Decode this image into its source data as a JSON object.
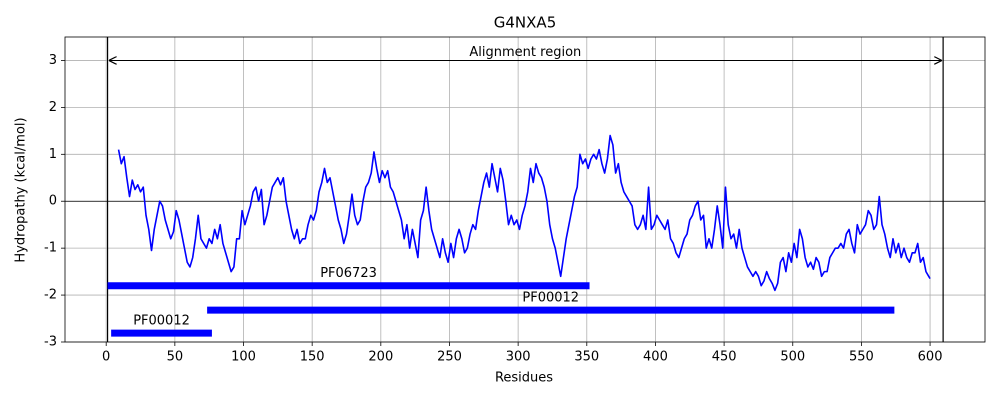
{
  "chart_data": {
    "type": "line",
    "title": "G4NXA5",
    "x_label": "Residues",
    "y_label": "Hydropathy (kcal/mol)",
    "xlim": [
      -30,
      640
    ],
    "ylim": [
      -3,
      3.5
    ],
    "xticks": [
      0,
      50,
      100,
      150,
      200,
      250,
      300,
      350,
      400,
      450,
      500,
      550,
      600
    ],
    "yticks": [
      -3,
      -2,
      -1,
      0,
      1,
      2,
      3
    ],
    "grid": true,
    "hline": 0,
    "vlines": [
      1,
      609.5
    ],
    "region": {
      "label": "Alignment region",
      "start": 1,
      "end": 609.5,
      "y": 3
    },
    "domains": [
      {
        "label": "PF06723",
        "start": 1,
        "end": 352,
        "y": -1.8,
        "color": "#0000ff"
      },
      {
        "label": "PF00012",
        "start": 73.5,
        "end": 574,
        "y": -2.32,
        "color": "#0000ff"
      },
      {
        "label": "PF00012",
        "start": 3.6,
        "end": 77,
        "y": -2.81,
        "color": "#0000ff"
      }
    ],
    "series": [
      {
        "name": "Hydropathy",
        "color": "#0000ff",
        "x": [
          9,
          11,
          13,
          15,
          17,
          19,
          21,
          23,
          25,
          27,
          29,
          31,
          33,
          35,
          37,
          39,
          41,
          43,
          45,
          47,
          49,
          51,
          53,
          55,
          57,
          59,
          61,
          63,
          65,
          67,
          69,
          71,
          73,
          75,
          77,
          79,
          81,
          83,
          85,
          87,
          89,
          91,
          93,
          95,
          97,
          99,
          101,
          103,
          105,
          107,
          109,
          111,
          113,
          115,
          117,
          119,
          121,
          123,
          125,
          127,
          129,
          131,
          133,
          135,
          137,
          139,
          141,
          143,
          145,
          147,
          149,
          151,
          153,
          155,
          157,
          159,
          161,
          163,
          165,
          167,
          169,
          171,
          173,
          175,
          177,
          179,
          181,
          183,
          185,
          187,
          189,
          191,
          193,
          195,
          197,
          199,
          201,
          203,
          205,
          207,
          209,
          211,
          213,
          215,
          217,
          219,
          221,
          223,
          225,
          227,
          229,
          231,
          233,
          235,
          237,
          239,
          241,
          243,
          245,
          247,
          249,
          251,
          253,
          255,
          257,
          259,
          261,
          263,
          265,
          267,
          269,
          271,
          273,
          275,
          277,
          279,
          281,
          283,
          285,
          287,
          289,
          291,
          293,
          295,
          297,
          299,
          301,
          303,
          305,
          307,
          309,
          311,
          313,
          315,
          317,
          319,
          321,
          323,
          325,
          327,
          329,
          331,
          333,
          335,
          337,
          339,
          341,
          343,
          345,
          347,
          349,
          351,
          353,
          355,
          357,
          359,
          361,
          363,
          365,
          367,
          369,
          371,
          373,
          375,
          377,
          379,
          381,
          383,
          385,
          387,
          389,
          391,
          393,
          395,
          397,
          399,
          401,
          403,
          405,
          407,
          409,
          411,
          413,
          415,
          417,
          419,
          421,
          423,
          425,
          427,
          429,
          431,
          433,
          435,
          437,
          439,
          441,
          443,
          445,
          447,
          449,
          451,
          453,
          455,
          457,
          459,
          461,
          463,
          465,
          467,
          469,
          471,
          473,
          475,
          477,
          479,
          481,
          483,
          485,
          487,
          489,
          491,
          493,
          495,
          497,
          499,
          501,
          503,
          505,
          507,
          509,
          511,
          513,
          515,
          517,
          519,
          521,
          523,
          525,
          527,
          529,
          531,
          533,
          535,
          537,
          539,
          541,
          543,
          545,
          547,
          549,
          551,
          553,
          555,
          557,
          559,
          561,
          563,
          565,
          567,
          569,
          571,
          573,
          575,
          577,
          579,
          581,
          583,
          585,
          587,
          589,
          591,
          593,
          595,
          597,
          599,
          600
        ],
        "values": [
          1.1,
          0.8,
          0.95,
          0.5,
          0.1,
          0.45,
          0.25,
          0.35,
          0.2,
          0.3,
          -0.3,
          -0.6,
          -1.05,
          -0.6,
          -0.3,
          0.0,
          -0.1,
          -0.4,
          -0.6,
          -0.8,
          -0.65,
          -0.2,
          -0.4,
          -0.7,
          -1.0,
          -1.3,
          -1.4,
          -1.2,
          -0.8,
          -0.3,
          -0.8,
          -0.9,
          -1.0,
          -0.8,
          -0.9,
          -0.6,
          -0.8,
          -0.5,
          -0.9,
          -1.1,
          -1.3,
          -1.5,
          -1.4,
          -0.8,
          -0.8,
          -0.2,
          -0.5,
          -0.3,
          -0.1,
          0.2,
          0.3,
          0.0,
          0.25,
          -0.5,
          -0.3,
          0.0,
          0.3,
          0.4,
          0.5,
          0.35,
          0.5,
          0.0,
          -0.3,
          -0.6,
          -0.8,
          -0.6,
          -0.9,
          -0.8,
          -0.8,
          -0.5,
          -0.3,
          -0.4,
          -0.2,
          0.2,
          0.4,
          0.7,
          0.4,
          0.5,
          0.2,
          -0.1,
          -0.4,
          -0.6,
          -0.9,
          -0.7,
          -0.3,
          0.15,
          -0.3,
          -0.5,
          -0.4,
          0.0,
          0.3,
          0.4,
          0.6,
          1.05,
          0.7,
          0.4,
          0.65,
          0.5,
          0.65,
          0.3,
          0.2,
          0.0,
          -0.2,
          -0.4,
          -0.8,
          -0.5,
          -1.0,
          -0.6,
          -0.9,
          -1.2,
          -0.4,
          -0.2,
          0.3,
          -0.2,
          -0.6,
          -0.8,
          -1.0,
          -1.2,
          -0.8,
          -1.1,
          -1.3,
          -0.9,
          -1.2,
          -0.8,
          -0.6,
          -0.8,
          -1.1,
          -1.0,
          -0.7,
          -0.5,
          -0.6,
          -0.2,
          0.1,
          0.4,
          0.6,
          0.3,
          0.8,
          0.5,
          0.2,
          0.7,
          0.45,
          0.0,
          -0.5,
          -0.3,
          -0.5,
          -0.4,
          -0.6,
          -0.3,
          -0.1,
          0.2,
          0.7,
          0.4,
          0.8,
          0.6,
          0.5,
          0.3,
          0.0,
          -0.5,
          -0.8,
          -1.0,
          -1.3,
          -1.6,
          -1.2,
          -0.8,
          -0.5,
          -0.2,
          0.1,
          0.3,
          1.0,
          0.8,
          0.9,
          0.7,
          0.9,
          1.0,
          0.9,
          1.1,
          0.8,
          0.6,
          0.9,
          1.4,
          1.2,
          0.6,
          0.8,
          0.4,
          0.2,
          0.1,
          0.0,
          -0.1,
          -0.5,
          -0.6,
          -0.5,
          -0.3,
          -0.6,
          0.3,
          -0.6,
          -0.5,
          -0.3,
          -0.4,
          -0.5,
          -0.6,
          -0.4,
          -0.8,
          -0.9,
          -1.1,
          -1.2,
          -1.0,
          -0.8,
          -0.7,
          -0.4,
          -0.3,
          -0.1,
          0.0,
          -0.4,
          -0.3,
          -1.0,
          -0.8,
          -1.0,
          -0.6,
          -0.1,
          -0.5,
          -1.0,
          0.3,
          -0.5,
          -0.8,
          -0.7,
          -1.0,
          -0.6,
          -1.0,
          -1.2,
          -1.4,
          -1.5,
          -1.6,
          -1.5,
          -1.6,
          -1.8,
          -1.7,
          -1.5,
          -1.65,
          -1.75,
          -1.9,
          -1.75,
          -1.3,
          -1.2,
          -1.5,
          -1.1,
          -1.3,
          -0.9,
          -1.2,
          -0.6,
          -0.8,
          -1.2,
          -1.4,
          -1.3,
          -1.45,
          -1.2,
          -1.3,
          -1.6,
          -1.5,
          -1.5,
          -1.2,
          -1.1,
          -1.0,
          -1.0,
          -0.9,
          -1.0,
          -0.7,
          -0.6,
          -0.9,
          -1.1,
          -0.5,
          -0.7,
          -0.6,
          -0.5,
          -0.2,
          -0.3,
          -0.6,
          -0.5,
          0.1,
          -0.5,
          -0.7,
          -1.0,
          -1.2,
          -0.8,
          -1.1,
          -0.9,
          -1.2,
          -1.0,
          -1.2,
          -1.3,
          -1.1,
          -1.1,
          -0.9,
          -1.3,
          -1.2,
          -1.5,
          -1.6,
          -1.65
        ]
      }
    ]
  }
}
